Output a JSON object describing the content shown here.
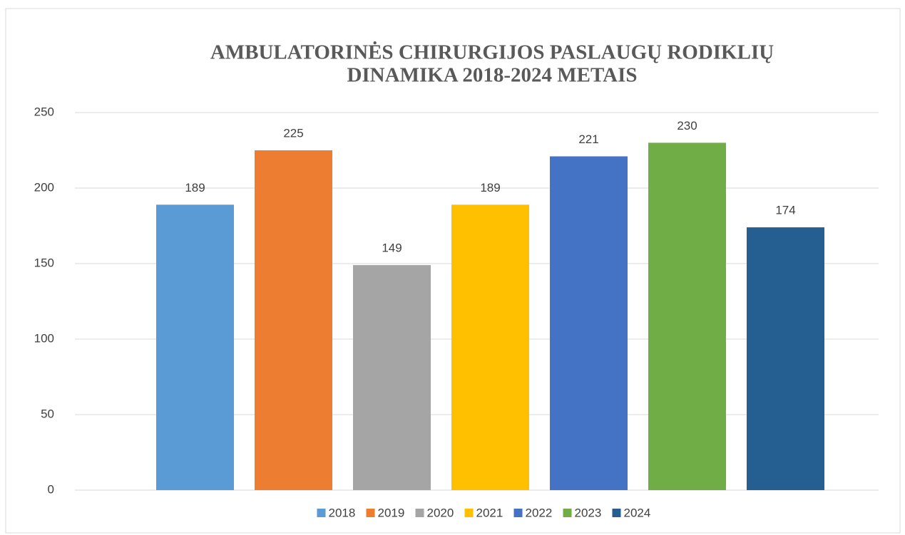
{
  "chart_data": {
    "type": "bar",
    "title": [
      "AMBULATORINĖS CHIRURGIJOS  PASLAUGŲ RODIKLIŲ",
      "DINAMIKA  2018-2024 METAIS"
    ],
    "categories": [
      null
    ],
    "series": [
      {
        "name": "2018",
        "color": "#5b9bd5",
        "values": [
          189
        ]
      },
      {
        "name": "2019",
        "color": "#ed7d31",
        "values": [
          225
        ]
      },
      {
        "name": "2020",
        "color": "#a5a5a5",
        "values": [
          149
        ]
      },
      {
        "name": "2021",
        "color": "#ffc000",
        "values": [
          189
        ]
      },
      {
        "name": "2022",
        "color": "#4472c4",
        "values": [
          221
        ]
      },
      {
        "name": "2023",
        "color": "#70ad47",
        "values": [
          230
        ]
      },
      {
        "name": "2024",
        "color": "#255e91",
        "values": [
          174
        ]
      }
    ],
    "ylim": [
      0,
      250
    ],
    "yticks": [
      0,
      50,
      100,
      150,
      200,
      250
    ],
    "grid": true,
    "legend": "bottom"
  }
}
